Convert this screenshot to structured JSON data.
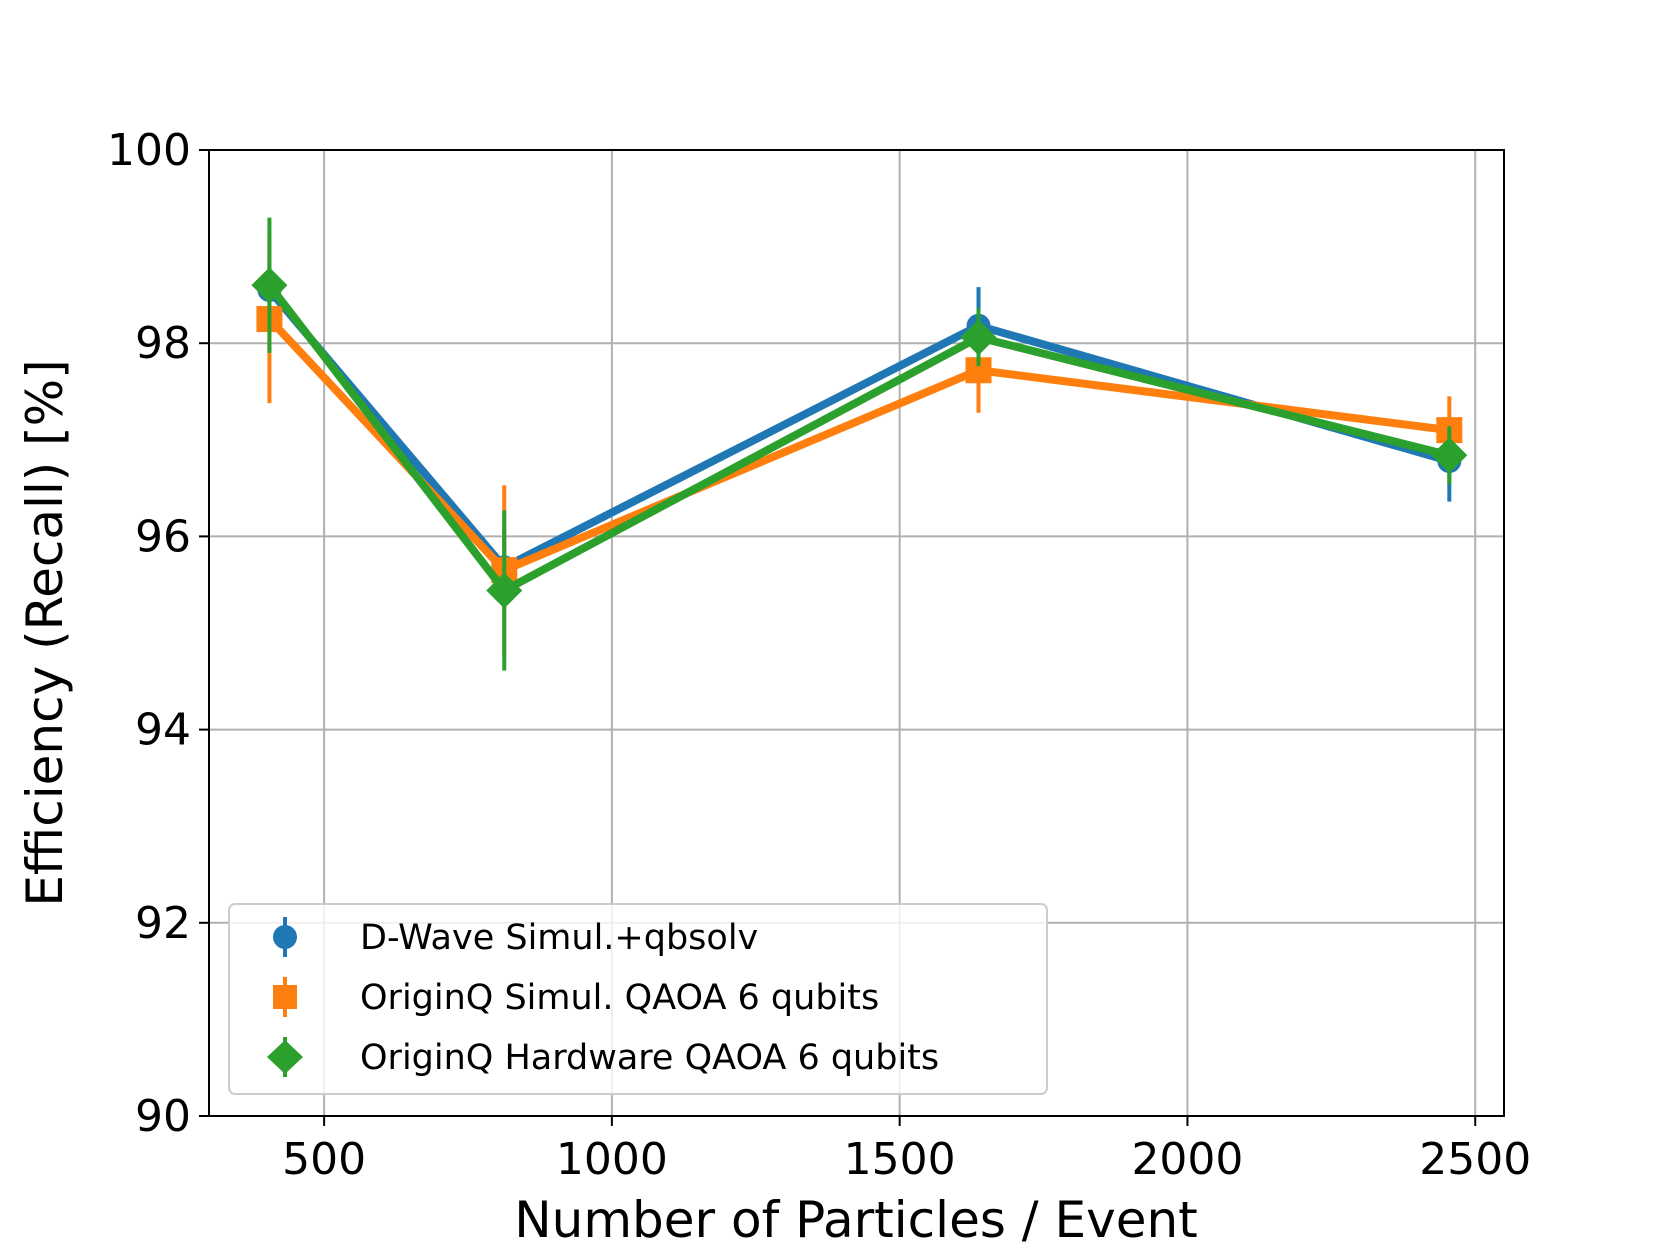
{
  "chart_data": {
    "type": "line",
    "title": "",
    "xlabel": "Number of Particles / Event",
    "ylabel": "Efficiency (Recall) [%]",
    "xlim": [
      300,
      2550
    ],
    "ylim": [
      90,
      100
    ],
    "xticks": [
      500,
      1000,
      1500,
      2000,
      2500
    ],
    "yticks": [
      90,
      92,
      94,
      96,
      98,
      100
    ],
    "xtick_labels": [
      "500",
      "1000",
      "1500",
      "2000",
      "2500"
    ],
    "ytick_labels": [
      "90",
      "92",
      "94",
      "96",
      "98",
      "100"
    ],
    "grid": true,
    "legend_position": "lower-left",
    "series": [
      {
        "name": "D-Wave Simul.+qbsolv",
        "color": "#1f77b4",
        "marker": "circle",
        "x": [
          405,
          813,
          1637,
          2455
        ],
        "y": [
          98.55,
          95.68,
          98.18,
          96.78
        ],
        "yerr": [
          0.3,
          0.4,
          0.4,
          0.42
        ]
      },
      {
        "name": "OriginQ Simul. QAOA 6 qubits",
        "color": "#ff7f0e",
        "marker": "square",
        "x": [
          405,
          813,
          1637,
          2455
        ],
        "y": [
          98.25,
          95.65,
          97.72,
          97.1
        ],
        "yerr": [
          0.87,
          0.88,
          0.44,
          0.35
        ]
      },
      {
        "name": "OriginQ Hardware QAOA 6 qubits",
        "color": "#2ca02c",
        "marker": "diamond",
        "x": [
          405,
          813,
          1637,
          2455
        ],
        "y": [
          98.6,
          95.44,
          98.06,
          96.84
        ],
        "yerr": [
          0.7,
          0.83,
          0.3,
          0.3
        ]
      }
    ]
  }
}
